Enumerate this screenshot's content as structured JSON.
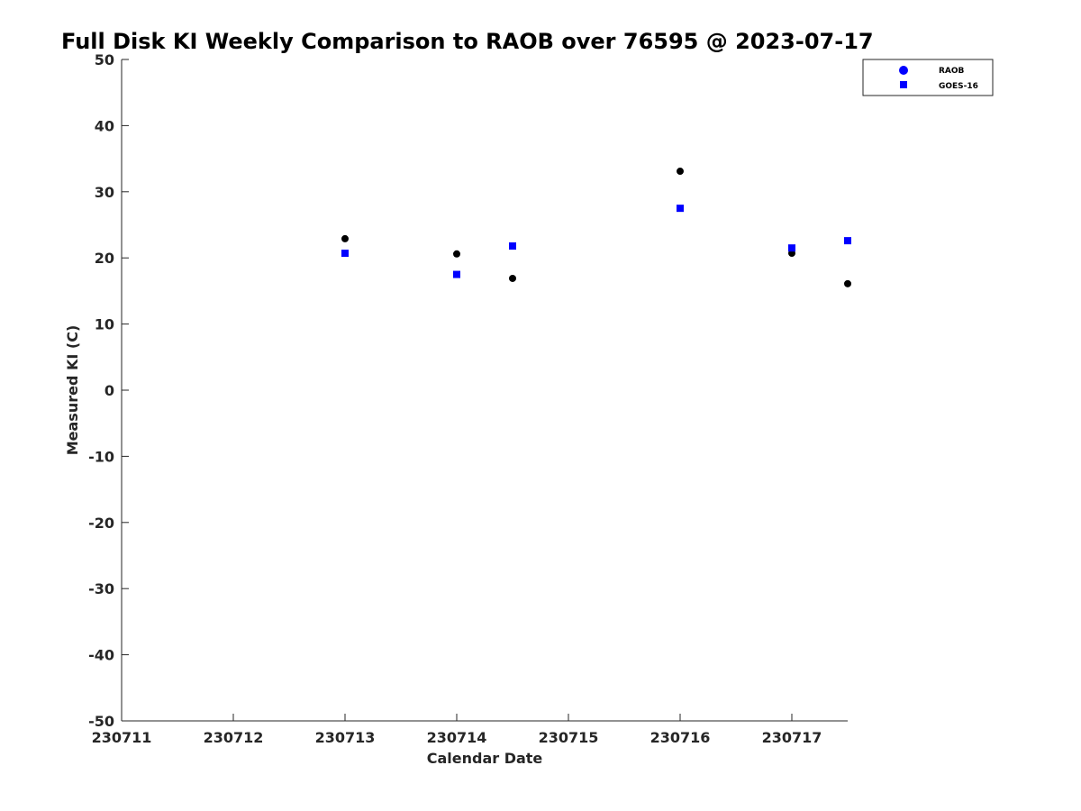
{
  "chart_data": {
    "type": "scatter",
    "title": "Full Disk KI Weekly Comparison to RAOB over 76595 @ 2023-07-17",
    "xlabel": "Calendar Date",
    "ylabel": "Measured KI (C)",
    "xlim": [
      "2023-07-11",
      "2023-07-17.5"
    ],
    "ylim": [
      -50,
      50
    ],
    "x_ticks": [
      {
        "x": "2023-07-11",
        "label": "230711"
      },
      {
        "x": "2023-07-12",
        "label": "230712"
      },
      {
        "x": "2023-07-13",
        "label": "230713"
      },
      {
        "x": "2023-07-14",
        "label": "230714"
      },
      {
        "x": "2023-07-15",
        "label": "230715"
      },
      {
        "x": "2023-07-16",
        "label": "230716"
      },
      {
        "x": "2023-07-17",
        "label": "230717"
      }
    ],
    "y_ticks": [
      50,
      40,
      30,
      20,
      10,
      0,
      -10,
      -20,
      -30,
      -40,
      -50
    ],
    "grid": false,
    "legend_position": "top-right",
    "series": [
      {
        "name": "RAOB",
        "marker": "circle",
        "color": "#000000",
        "legend_color": "#0000ff",
        "points": [
          {
            "x": "2023-07-13 00Z",
            "y": 22.9
          },
          {
            "x": "2023-07-14 00Z",
            "y": 20.6
          },
          {
            "x": "2023-07-14 12Z",
            "y": 16.9
          },
          {
            "x": "2023-07-16 00Z",
            "y": 33.1
          },
          {
            "x": "2023-07-17 00Z",
            "y": 20.7
          },
          {
            "x": "2023-07-17 12Z",
            "y": 16.1
          }
        ]
      },
      {
        "name": "GOES-16",
        "marker": "square",
        "color": "#0000ff",
        "legend_color": "#0000ff",
        "points": [
          {
            "x": "2023-07-13 00Z",
            "y": 20.7
          },
          {
            "x": "2023-07-14 00Z",
            "y": 17.5
          },
          {
            "x": "2023-07-14 12Z",
            "y": 21.8
          },
          {
            "x": "2023-07-16 00Z",
            "y": 27.5
          },
          {
            "x": "2023-07-17 00Z",
            "y": 21.5
          },
          {
            "x": "2023-07-17 12Z",
            "y": 22.6
          }
        ]
      }
    ]
  }
}
